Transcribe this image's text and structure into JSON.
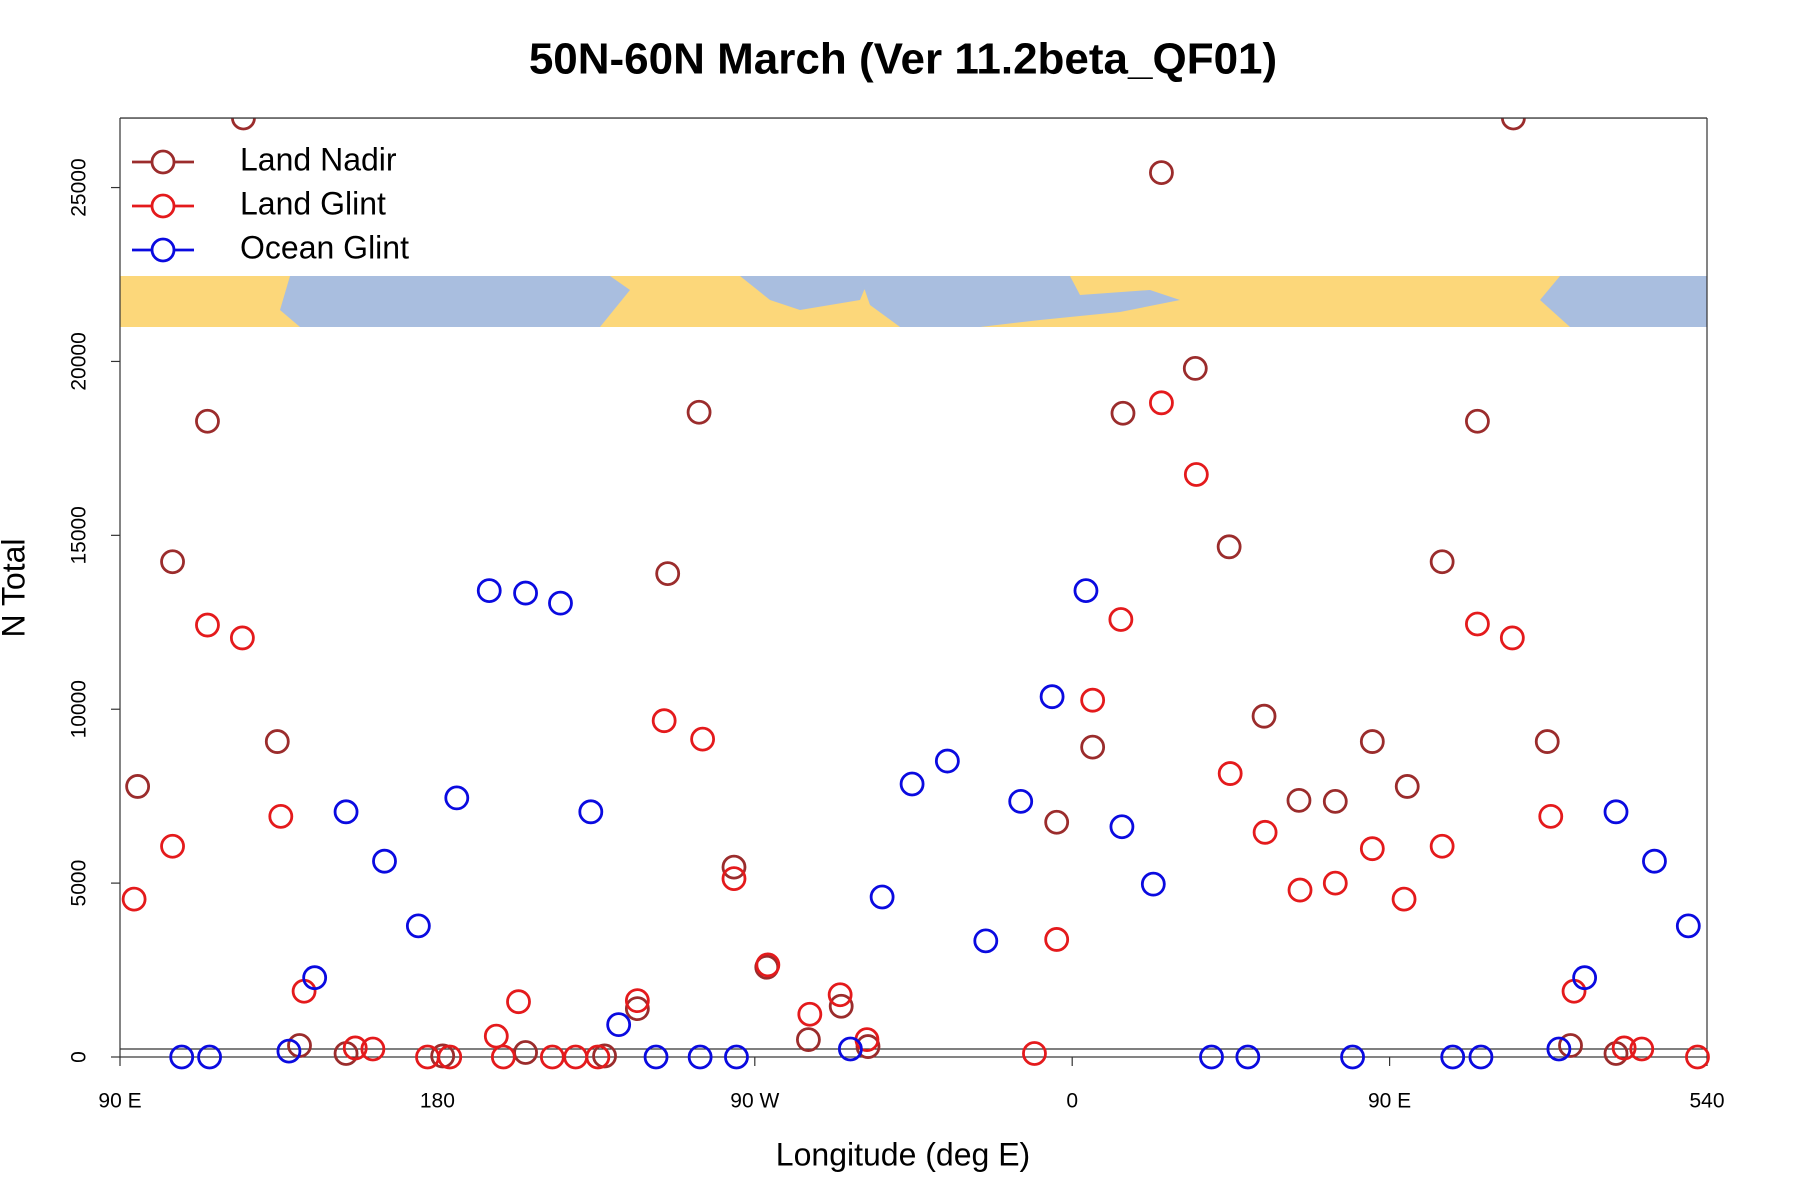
{
  "chart_data": {
    "type": "scatter",
    "title": "50N-60N March (Ver 11.2beta_QF01)",
    "x_label": "Longitude (deg E)",
    "y_label": "N Total",
    "xlim": [
      90,
      540
    ],
    "ylim": [
      0,
      27000
    ],
    "xticks": [
      {
        "value": 90,
        "label": "90 E"
      },
      180,
      {
        "value": 270,
        "label": "90 W"
      },
      {
        "value": 360,
        "label": "0"
      },
      {
        "value": 450,
        "label": "90 E"
      },
      540
    ],
    "yticks": [
      0,
      5000,
      10000,
      15000,
      20000,
      25000
    ],
    "hline": 230,
    "legend": "top-left",
    "series": [
      {
        "name": "Land Nadir",
        "color": "#9b2c2c",
        "x": [
          95.0,
          104.9,
          114.8,
          125.0,
          134.6,
          140.9,
          154.1,
          181.5,
          205.0,
          227.4,
          236.7,
          245.3,
          254.2,
          264.1,
          273.4,
          285.2,
          294.5,
          302.1,
          355.6,
          365.8,
          374.4,
          385.3,
          394.9,
          404.5,
          414.4,
          424.3,
          434.6,
          445.1,
          455.0,
          464.9,
          474.9,
          485.1,
          494.7,
          501.3,
          514.2
        ],
        "values": [
          7780,
          14240,
          18280,
          27000,
          9070,
          330,
          100,
          30,
          130,
          30,
          1390,
          13900,
          18540,
          5460,
          2580,
          500,
          1460,
          300,
          6750,
          8910,
          18510,
          25430,
          19800,
          14670,
          9800,
          7380,
          7350,
          9070,
          7780,
          14240,
          18280,
          27000,
          9070,
          330,
          100
        ]
      },
      {
        "name": "Land Glint",
        "color": "#e41a1c",
        "x": [
          94.0,
          104.9,
          114.8,
          124.7,
          135.6,
          142.2,
          156.7,
          161.7,
          177.2,
          183.5,
          196.7,
          198.7,
          203.0,
          212.6,
          219.2,
          225.5,
          236.7,
          244.3,
          255.2,
          264.1,
          273.7,
          285.6,
          294.2,
          301.8,
          349.3,
          355.6,
          365.8,
          373.8,
          385.3,
          395.2,
          404.8,
          414.7,
          424.6,
          434.6,
          445.1,
          454.1,
          464.9,
          474.9,
          484.8,
          495.7,
          502.3,
          516.5,
          521.5,
          537.3
        ],
        "values": [
          4540,
          6060,
          12420,
          12050,
          6920,
          1890,
          260,
          230,
          0,
          0,
          600,
          0,
          1590,
          0,
          0,
          0,
          1620,
          9670,
          9140,
          5130,
          2650,
          1230,
          1790,
          500,
          100,
          3380,
          10260,
          12580,
          18810,
          16750,
          8150,
          6460,
          4800,
          5000,
          5990,
          4540,
          6060,
          12450,
          12050,
          6920,
          1890,
          260,
          230,
          0
        ]
      },
      {
        "name": "Ocean Glint",
        "color": "#0a0ae0",
        "x": [
          107.5,
          115.4,
          137.9,
          145.2,
          154.1,
          165.0,
          174.6,
          185.5,
          194.7,
          205.0,
          214.9,
          223.5,
          231.4,
          242.0,
          254.5,
          264.8,
          297.1,
          306.1,
          314.6,
          324.6,
          335.5,
          345.4,
          354.3,
          363.9,
          374.1,
          383.0,
          399.5,
          409.8,
          439.5,
          467.9,
          475.9,
          498.0,
          505.3,
          514.2,
          525.1,
          534.7
        ],
        "values": [
          0,
          0,
          170,
          2280,
          7050,
          5630,
          3770,
          7450,
          13410,
          13340,
          13050,
          7050,
          930,
          0,
          0,
          0,
          230,
          4600,
          7850,
          8510,
          3340,
          7350,
          10360,
          13410,
          6620,
          4970,
          0,
          0,
          0,
          0,
          0,
          230,
          2280,
          7050,
          5630,
          3770
        ]
      }
    ]
  }
}
